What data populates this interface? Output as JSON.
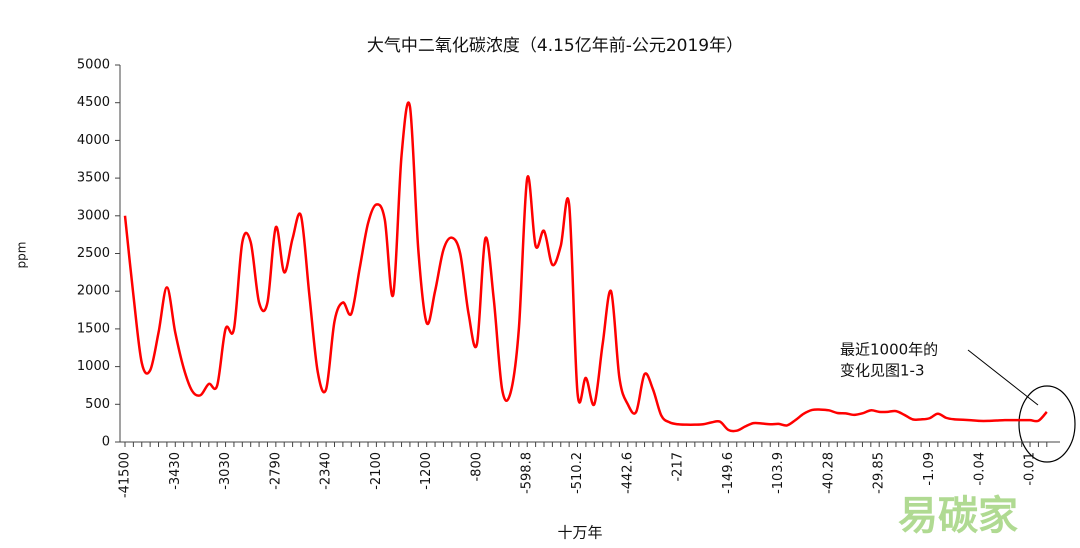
{
  "chart_data": {
    "type": "line",
    "title": "大气中二氧化碳浓度（4.15亿年前-公元2019年）",
    "y_label": "ppm",
    "x_label": "十万年",
    "annotation": [
      "最近1000年的",
      "变化见图1-3"
    ],
    "watermark": "易碳家",
    "categories": [
      "-41500",
      null,
      null,
      null,
      null,
      null,
      "-3430",
      null,
      null,
      null,
      null,
      null,
      "-3030",
      null,
      null,
      null,
      null,
      null,
      "-2790",
      null,
      null,
      null,
      null,
      null,
      "-2340",
      null,
      null,
      null,
      null,
      null,
      "-2100",
      null,
      null,
      null,
      null,
      null,
      "-1200",
      null,
      null,
      null,
      null,
      null,
      "-800",
      null,
      null,
      null,
      null,
      null,
      "-598.8",
      null,
      null,
      null,
      null,
      null,
      "-510.2",
      null,
      null,
      null,
      null,
      null,
      "-442.6",
      null,
      null,
      null,
      null,
      null,
      "-217",
      null,
      null,
      null,
      null,
      null,
      "-149.6",
      null,
      null,
      null,
      null,
      null,
      "-103.9",
      null,
      null,
      null,
      null,
      null,
      "-40.28",
      null,
      null,
      null,
      null,
      null,
      "-29.85",
      null,
      null,
      null,
      null,
      null,
      "-1.09",
      null,
      null,
      null,
      null,
      null,
      "-0.04",
      null,
      null,
      null,
      null,
      null,
      "-0.01",
      null,
      null
    ],
    "series": [
      {
        "name": "CO2",
        "color": "#ff0000",
        "values": [
          3000,
          1950,
          1050,
          950,
          1450,
          2050,
          1450,
          980,
          680,
          620,
          770,
          750,
          1500,
          1500,
          2650,
          2650,
          1850,
          1850,
          2850,
          2250,
          2700,
          3000,
          1950,
          930,
          700,
          1600,
          1850,
          1700,
          2300,
          2900,
          3150,
          2950,
          1950,
          3800,
          4450,
          2550,
          1580,
          2000,
          2550,
          2710,
          2500,
          1700,
          1300,
          2700,
          1900,
          700,
          650,
          1500,
          3500,
          2600,
          2800,
          2350,
          2600,
          3150,
          650,
          850,
          500,
          1300,
          2000,
          850,
          500,
          400,
          900,
          700,
          350,
          260,
          235,
          230,
          230,
          235,
          260,
          270,
          160,
          150,
          205,
          250,
          245,
          235,
          240,
          220,
          290,
          375,
          425,
          430,
          420,
          385,
          380,
          360,
          380,
          420,
          400,
          400,
          410,
          360,
          300,
          300,
          315,
          375,
          320,
          300,
          295,
          288,
          280,
          280,
          285,
          290,
          290,
          290,
          290,
          282,
          400
        ]
      }
    ],
    "ylim": [
      0,
      5000
    ],
    "yticks": [
      0,
      500,
      1000,
      1500,
      2000,
      2500,
      3000,
      3500,
      4000,
      4500,
      5000
    ],
    "grid": false
  }
}
